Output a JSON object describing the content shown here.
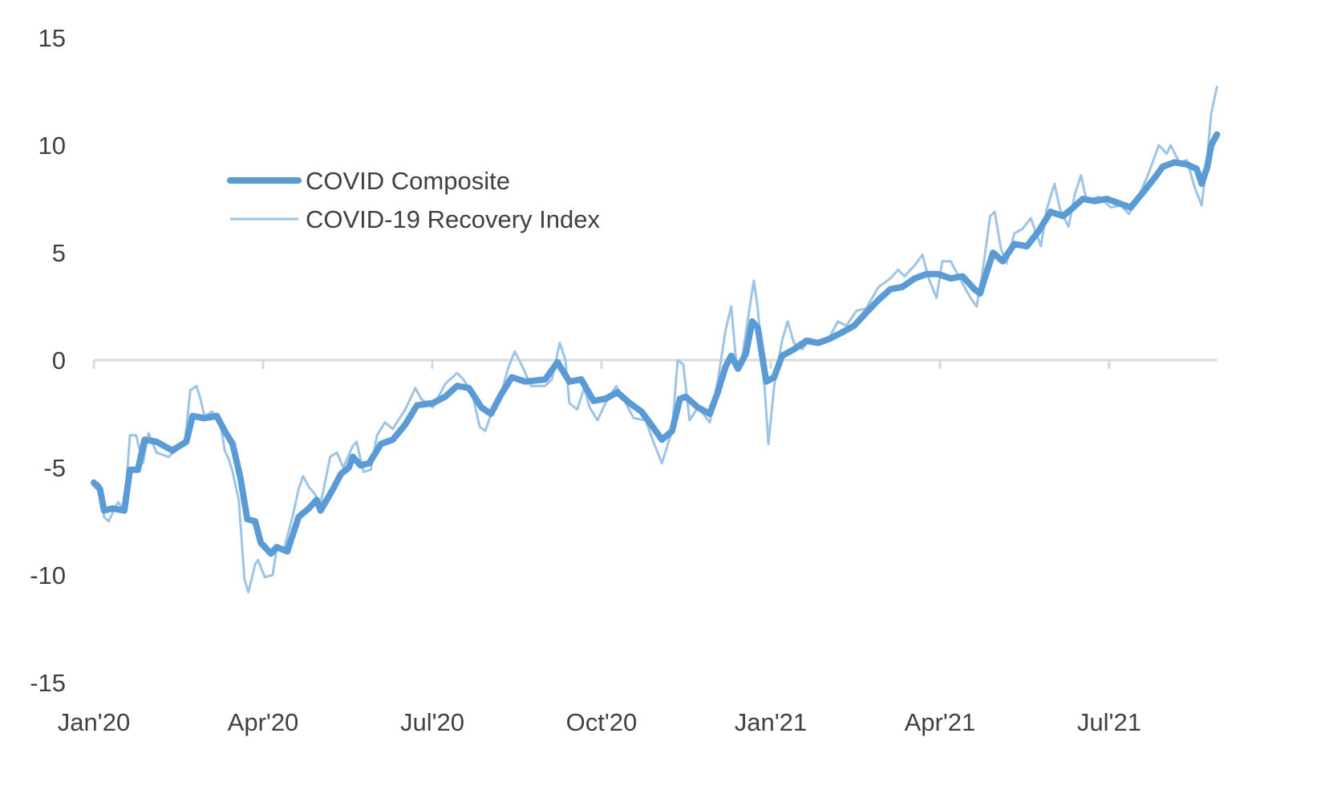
{
  "chart_data": {
    "type": "line",
    "title": "",
    "xlabel": "",
    "ylabel": "",
    "x_unit": "months since Jan 2020",
    "ylim": [
      -15,
      15
    ],
    "xlim": [
      0,
      19.91
    ],
    "yticks": [
      15,
      10,
      5,
      0,
      -5,
      -10,
      -15
    ],
    "ytick_labels": [
      "15",
      "10",
      "5",
      "0",
      "-5",
      "-10",
      "-15"
    ],
    "xticks": [
      0,
      3,
      6,
      9,
      12,
      15,
      18
    ],
    "xtick_labels": [
      "Jan'20",
      "Apr'20",
      "Jul'20",
      "Oct'20",
      "Jan'21",
      "Apr'21",
      "Jul'21"
    ],
    "grid": false,
    "legend_position": "upper-left",
    "series": [
      {
        "name": "COVID Composite",
        "color": "#5B9BD5",
        "points": [
          [
            0,
            -5.7
          ],
          [
            0.11,
            -6.0
          ],
          [
            0.18,
            -7.0
          ],
          [
            0.33,
            -6.9
          ],
          [
            0.54,
            -7.0
          ],
          [
            0.64,
            -5.1
          ],
          [
            0.78,
            -5.1
          ],
          [
            0.9,
            -3.7
          ],
          [
            1.11,
            -3.8
          ],
          [
            1.39,
            -4.2
          ],
          [
            1.64,
            -3.8
          ],
          [
            1.75,
            -2.6
          ],
          [
            1.96,
            -2.7
          ],
          [
            2.18,
            -2.6
          ],
          [
            2.32,
            -3.3
          ],
          [
            2.46,
            -3.9
          ],
          [
            2.6,
            -5.5
          ],
          [
            2.72,
            -7.4
          ],
          [
            2.86,
            -7.5
          ],
          [
            2.96,
            -8.5
          ],
          [
            3.14,
            -9.0
          ],
          [
            3.24,
            -8.7
          ],
          [
            3.43,
            -8.9
          ],
          [
            3.63,
            -7.3
          ],
          [
            3.81,
            -6.9
          ],
          [
            3.95,
            -6.5
          ],
          [
            4.02,
            -7.0
          ],
          [
            4.24,
            -6.0
          ],
          [
            4.38,
            -5.3
          ],
          [
            4.52,
            -5.0
          ],
          [
            4.59,
            -4.5
          ],
          [
            4.73,
            -4.9
          ],
          [
            4.88,
            -4.8
          ],
          [
            5.09,
            -3.9
          ],
          [
            5.3,
            -3.7
          ],
          [
            5.52,
            -3.0
          ],
          [
            5.73,
            -2.1
          ],
          [
            6.01,
            -2.0
          ],
          [
            6.23,
            -1.7
          ],
          [
            6.44,
            -1.2
          ],
          [
            6.65,
            -1.3
          ],
          [
            6.87,
            -2.2
          ],
          [
            7.04,
            -2.5
          ],
          [
            7.22,
            -1.6
          ],
          [
            7.41,
            -0.8
          ],
          [
            7.65,
            -1.0
          ],
          [
            8.0,
            -0.9
          ],
          [
            8.22,
            -0.1
          ],
          [
            8.43,
            -1.0
          ],
          [
            8.64,
            -0.9
          ],
          [
            8.86,
            -1.9
          ],
          [
            9.07,
            -1.8
          ],
          [
            9.28,
            -1.5
          ],
          [
            9.5,
            -2.0
          ],
          [
            9.71,
            -2.4
          ],
          [
            9.88,
            -3.0
          ],
          [
            10.07,
            -3.7
          ],
          [
            10.25,
            -3.3
          ],
          [
            10.39,
            -1.8
          ],
          [
            10.49,
            -1.7
          ],
          [
            10.71,
            -2.2
          ],
          [
            10.92,
            -2.5
          ],
          [
            11.06,
            -1.5
          ],
          [
            11.2,
            -0.3
          ],
          [
            11.3,
            0.2
          ],
          [
            11.42,
            -0.4
          ],
          [
            11.56,
            0.3
          ],
          [
            11.67,
            1.8
          ],
          [
            11.77,
            1.5
          ],
          [
            11.92,
            -1.0
          ],
          [
            12.06,
            -0.8
          ],
          [
            12.2,
            0.2
          ],
          [
            12.41,
            0.5
          ],
          [
            12.63,
            0.9
          ],
          [
            12.84,
            0.8
          ],
          [
            13.05,
            1.0
          ],
          [
            13.27,
            1.3
          ],
          [
            13.48,
            1.6
          ],
          [
            13.69,
            2.2
          ],
          [
            13.91,
            2.8
          ],
          [
            14.12,
            3.3
          ],
          [
            14.33,
            3.4
          ],
          [
            14.55,
            3.8
          ],
          [
            14.76,
            4.0
          ],
          [
            14.97,
            4.0
          ],
          [
            15.19,
            3.8
          ],
          [
            15.4,
            3.9
          ],
          [
            15.61,
            3.3
          ],
          [
            15.71,
            3.1
          ],
          [
            15.83,
            4.1
          ],
          [
            15.94,
            5.0
          ],
          [
            16.11,
            4.6
          ],
          [
            16.32,
            5.4
          ],
          [
            16.54,
            5.3
          ],
          [
            16.75,
            6.0
          ],
          [
            16.96,
            6.9
          ],
          [
            17.18,
            6.7
          ],
          [
            17.32,
            7.0
          ],
          [
            17.53,
            7.5
          ],
          [
            17.74,
            7.4
          ],
          [
            17.96,
            7.5
          ],
          [
            18.17,
            7.3
          ],
          [
            18.38,
            7.1
          ],
          [
            18.6,
            7.8
          ],
          [
            18.81,
            8.5
          ],
          [
            18.95,
            9.0
          ],
          [
            19.16,
            9.2
          ],
          [
            19.38,
            9.1
          ],
          [
            19.55,
            8.9
          ],
          [
            19.64,
            8.2
          ],
          [
            19.74,
            9.0
          ],
          [
            19.81,
            10.0
          ],
          [
            19.91,
            10.5
          ]
        ]
      },
      {
        "name": "COVID-19 Recovery Index",
        "color": "#9DC3E6",
        "points": [
          [
            0,
            -5.6
          ],
          [
            0.11,
            -5.8
          ],
          [
            0.18,
            -7.3
          ],
          [
            0.26,
            -7.5
          ],
          [
            0.43,
            -6.6
          ],
          [
            0.54,
            -7.0
          ],
          [
            0.64,
            -3.5
          ],
          [
            0.75,
            -3.5
          ],
          [
            0.87,
            -4.8
          ],
          [
            0.97,
            -3.4
          ],
          [
            1.11,
            -4.3
          ],
          [
            1.32,
            -4.5
          ],
          [
            1.61,
            -3.9
          ],
          [
            1.71,
            -1.4
          ],
          [
            1.82,
            -1.2
          ],
          [
            1.89,
            -1.8
          ],
          [
            1.96,
            -2.6
          ],
          [
            2.1,
            -2.4
          ],
          [
            2.25,
            -3.0
          ],
          [
            2.32,
            -4.2
          ],
          [
            2.39,
            -4.6
          ],
          [
            2.46,
            -5.2
          ],
          [
            2.57,
            -6.5
          ],
          [
            2.67,
            -10.2
          ],
          [
            2.74,
            -10.8
          ],
          [
            2.86,
            -9.5
          ],
          [
            2.91,
            -9.3
          ],
          [
            3.03,
            -10.1
          ],
          [
            3.17,
            -10.0
          ],
          [
            3.24,
            -8.8
          ],
          [
            3.38,
            -8.7
          ],
          [
            3.53,
            -7.2
          ],
          [
            3.63,
            -6.0
          ],
          [
            3.71,
            -5.4
          ],
          [
            3.81,
            -5.9
          ],
          [
            3.91,
            -6.2
          ],
          [
            4.02,
            -6.7
          ],
          [
            4.19,
            -4.5
          ],
          [
            4.31,
            -4.3
          ],
          [
            4.42,
            -5.0
          ],
          [
            4.59,
            -4.0
          ],
          [
            4.66,
            -3.8
          ],
          [
            4.78,
            -5.2
          ],
          [
            4.91,
            -5.1
          ],
          [
            5.02,
            -3.5
          ],
          [
            5.16,
            -2.9
          ],
          [
            5.3,
            -3.2
          ],
          [
            5.52,
            -2.3
          ],
          [
            5.7,
            -1.3
          ],
          [
            5.8,
            -1.8
          ],
          [
            6.01,
            -2.2
          ],
          [
            6.23,
            -1.1
          ],
          [
            6.44,
            -0.6
          ],
          [
            6.55,
            -0.9
          ],
          [
            6.7,
            -1.5
          ],
          [
            6.84,
            -3.1
          ],
          [
            6.94,
            -3.3
          ],
          [
            7.08,
            -2.2
          ],
          [
            7.22,
            -1.6
          ],
          [
            7.34,
            -0.4
          ],
          [
            7.46,
            0.4
          ],
          [
            7.58,
            -0.2
          ],
          [
            7.75,
            -1.2
          ],
          [
            8.0,
            -1.2
          ],
          [
            8.12,
            -0.9
          ],
          [
            8.26,
            0.8
          ],
          [
            8.36,
            0.0
          ],
          [
            8.43,
            -2.0
          ],
          [
            8.57,
            -2.3
          ],
          [
            8.69,
            -1.3
          ],
          [
            8.79,
            -2.2
          ],
          [
            8.93,
            -2.8
          ],
          [
            9.07,
            -2.0
          ],
          [
            9.26,
            -1.2
          ],
          [
            9.43,
            -2.0
          ],
          [
            9.57,
            -2.7
          ],
          [
            9.78,
            -2.8
          ],
          [
            9.92,
            -3.8
          ],
          [
            10.07,
            -4.8
          ],
          [
            10.25,
            -3.3
          ],
          [
            10.35,
            0.0
          ],
          [
            10.45,
            -0.2
          ],
          [
            10.56,
            -2.8
          ],
          [
            10.71,
            -2.2
          ],
          [
            10.92,
            -2.9
          ],
          [
            11.06,
            -1.0
          ],
          [
            11.2,
            1.4
          ],
          [
            11.3,
            2.5
          ],
          [
            11.39,
            -0.2
          ],
          [
            11.49,
            0.1
          ],
          [
            11.63,
            2.5
          ],
          [
            11.7,
            3.7
          ],
          [
            11.77,
            2.4
          ],
          [
            11.87,
            -0.5
          ],
          [
            11.96,
            -3.9
          ],
          [
            12.06,
            -1.2
          ],
          [
            12.2,
            0.9
          ],
          [
            12.3,
            1.8
          ],
          [
            12.41,
            0.8
          ],
          [
            12.56,
            0.5
          ],
          [
            12.7,
            1.0
          ],
          [
            12.84,
            0.8
          ],
          [
            13.05,
            1.1
          ],
          [
            13.19,
            1.8
          ],
          [
            13.34,
            1.6
          ],
          [
            13.52,
            2.3
          ],
          [
            13.69,
            2.4
          ],
          [
            13.91,
            3.4
          ],
          [
            14.12,
            3.8
          ],
          [
            14.26,
            4.2
          ],
          [
            14.37,
            3.9
          ],
          [
            14.55,
            4.4
          ],
          [
            14.69,
            4.9
          ],
          [
            14.8,
            3.8
          ],
          [
            14.94,
            2.9
          ],
          [
            15.04,
            4.6
          ],
          [
            15.19,
            4.6
          ],
          [
            15.33,
            3.9
          ],
          [
            15.54,
            2.9
          ],
          [
            15.65,
            2.5
          ],
          [
            15.75,
            4.0
          ],
          [
            15.89,
            6.7
          ],
          [
            15.97,
            6.9
          ],
          [
            16.08,
            5.2
          ],
          [
            16.18,
            4.5
          ],
          [
            16.32,
            5.9
          ],
          [
            16.46,
            6.1
          ],
          [
            16.61,
            6.6
          ],
          [
            16.79,
            5.3
          ],
          [
            16.89,
            7.0
          ],
          [
            17.03,
            8.2
          ],
          [
            17.13,
            7.0
          ],
          [
            17.28,
            6.2
          ],
          [
            17.39,
            7.7
          ],
          [
            17.5,
            8.6
          ],
          [
            17.6,
            7.4
          ],
          [
            17.81,
            7.6
          ],
          [
            18.03,
            7.1
          ],
          [
            18.21,
            7.2
          ],
          [
            18.35,
            6.8
          ],
          [
            18.52,
            7.6
          ],
          [
            18.7,
            8.7
          ],
          [
            18.88,
            10.0
          ],
          [
            19.02,
            9.6
          ],
          [
            19.09,
            10.0
          ],
          [
            19.24,
            9.2
          ],
          [
            19.38,
            9.3
          ],
          [
            19.52,
            8.0
          ],
          [
            19.64,
            7.2
          ],
          [
            19.74,
            9.5
          ],
          [
            19.81,
            11.5
          ],
          [
            19.91,
            12.7
          ]
        ]
      }
    ]
  }
}
